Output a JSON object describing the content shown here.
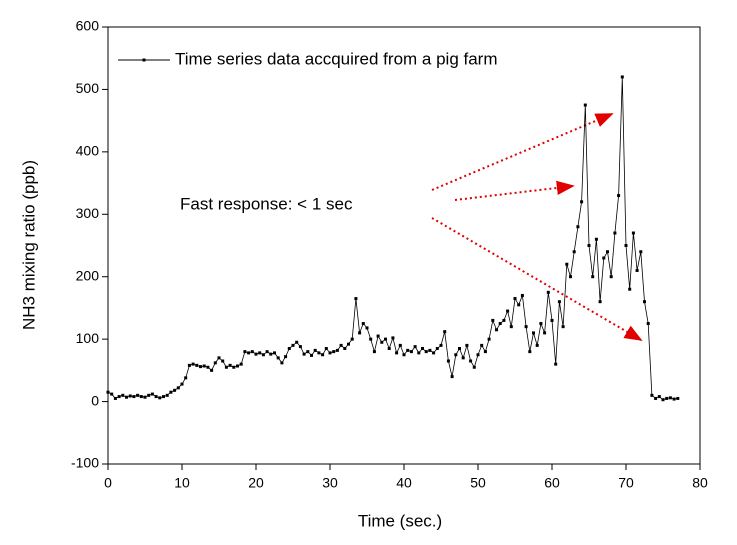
{
  "chart_data": {
    "type": "line",
    "xlabel": "Time (sec.)",
    "ylabel": "NH3 mixing ratio (ppb)",
    "annotation": "Fast response: < 1 sec",
    "xlim": [
      0,
      80
    ],
    "xticks": [
      0,
      10,
      20,
      30,
      40,
      50,
      60,
      70,
      80
    ],
    "ylim": [
      -100,
      600
    ],
    "yticks": [
      -100,
      0,
      100,
      200,
      300,
      400,
      500,
      600
    ],
    "legend": "upper left",
    "x": [
      0,
      0.5,
      1,
      1.5,
      2,
      2.5,
      3,
      3.5,
      4,
      4.5,
      5,
      5.5,
      6,
      6.5,
      7,
      7.5,
      8,
      8.5,
      9,
      9.5,
      10,
      10.5,
      11,
      11.5,
      12,
      12.5,
      13,
      13.5,
      14,
      14.5,
      15,
      15.5,
      16,
      16.5,
      17,
      17.5,
      18,
      18.5,
      19,
      19.5,
      20,
      20.5,
      21,
      21.5,
      22,
      22.5,
      23,
      23.5,
      24,
      24.5,
      25,
      25.5,
      26,
      26.5,
      27,
      27.5,
      28,
      28.5,
      29,
      29.5,
      30,
      30.5,
      31,
      31.5,
      32,
      32.5,
      33,
      33.5,
      34,
      34.5,
      35,
      35.5,
      36,
      36.5,
      37,
      37.5,
      38,
      38.5,
      39,
      39.5,
      40,
      40.5,
      41,
      41.5,
      42,
      42.5,
      43,
      43.5,
      44,
      44.5,
      45,
      45.5,
      46,
      46.5,
      47,
      47.5,
      48,
      48.5,
      49,
      49.5,
      50,
      50.5,
      51,
      51.5,
      52,
      52.5,
      53,
      53.5,
      54,
      54.5,
      55,
      55.5,
      56,
      56.5,
      57,
      57.5,
      58,
      58.5,
      59,
      59.5,
      60,
      60.5,
      61,
      61.5,
      62,
      62.5,
      63,
      63.5,
      64,
      64.5,
      65,
      65.5,
      66,
      66.5,
      67,
      67.5,
      68,
      68.5,
      69,
      69.5,
      70,
      70.5,
      71,
      71.5,
      72,
      72.5,
      73,
      73.5,
      74,
      74.5,
      75,
      75.5,
      76,
      76.5,
      77
    ],
    "series": [
      {
        "name": "Time series data accquired from a pig farm",
        "color": "#000000",
        "values": [
          15,
          12,
          5,
          8,
          10,
          7,
          9,
          8,
          10,
          8,
          7,
          10,
          12,
          8,
          6,
          8,
          10,
          15,
          18,
          22,
          28,
          38,
          58,
          60,
          58,
          56,
          57,
          55,
          50,
          62,
          70,
          65,
          55,
          58,
          55,
          57,
          60,
          80,
          78,
          80,
          76,
          78,
          75,
          80,
          76,
          78,
          70,
          62,
          72,
          85,
          90,
          95,
          88,
          76,
          80,
          74,
          82,
          78,
          75,
          85,
          78,
          80,
          82,
          90,
          85,
          92,
          100,
          165,
          110,
          125,
          118,
          100,
          80,
          105,
          95,
          100,
          85,
          102,
          78,
          90,
          75,
          82,
          80,
          88,
          78,
          85,
          80,
          82,
          78,
          85,
          90,
          112,
          65,
          40,
          75,
          85,
          70,
          90,
          65,
          55,
          75,
          90,
          80,
          100,
          130,
          115,
          125,
          130,
          145,
          120,
          165,
          155,
          170,
          120,
          80,
          110,
          90,
          125,
          110,
          175,
          130,
          60,
          160,
          120,
          220,
          200,
          240,
          280,
          320,
          475,
          250,
          200,
          260,
          160,
          230,
          240,
          200,
          270,
          330,
          520,
          250,
          180,
          270,
          210,
          240,
          160,
          125,
          10,
          5,
          8,
          3,
          5,
          6,
          4,
          5
        ]
      }
    ]
  }
}
